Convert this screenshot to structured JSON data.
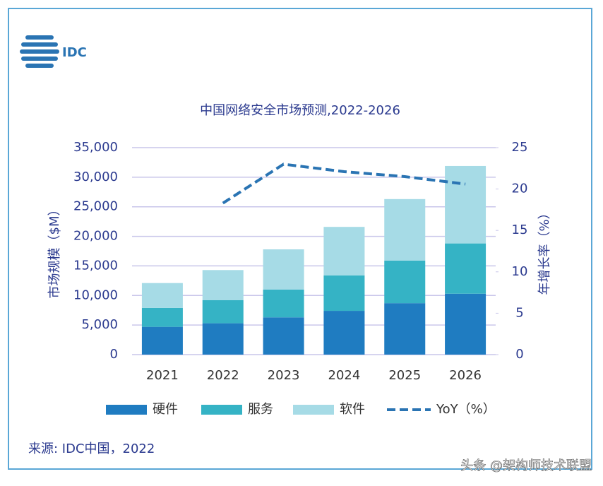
{
  "logo": "IDC",
  "chart_data": {
    "type": "bar",
    "stacked": true,
    "title": "中国网络安全市场预测,2022-2026",
    "y_label": "市场规模（$M）",
    "y2_label": "年增长率（%）",
    "categories": [
      "2021",
      "2022",
      "2023",
      "2024",
      "2025",
      "2026"
    ],
    "series": [
      {
        "name": "硬件",
        "color": "#1f7cc1",
        "values": [
          4700,
          5300,
          6300,
          7400,
          8700,
          10300
        ]
      },
      {
        "name": "服务",
        "color": "#35b3c5",
        "values": [
          3200,
          3900,
          4700,
          6000,
          7200,
          8500
        ]
      },
      {
        "name": "软件",
        "color": "#a6dbe6",
        "values": [
          4200,
          5100,
          6800,
          8200,
          10400,
          13100
        ]
      },
      {
        "name": "YoY（%）",
        "color": "#2a74b3",
        "type": "line",
        "dashed": true,
        "axis": "y2",
        "values": [
          null,
          18.3,
          23.0,
          22.1,
          21.5,
          20.6
        ]
      }
    ],
    "ylim": [
      0,
      35000
    ],
    "yticks": [
      0,
      {
        "value": 5000,
        "label": "5,000"
      },
      {
        "value": 10000,
        "label": "10,000"
      },
      {
        "value": 15000,
        "label": "15,000"
      },
      {
        "value": 20000,
        "label": "20,000"
      },
      {
        "value": 25000,
        "label": "25,000"
      },
      {
        "value": 30000,
        "label": "30,000"
      },
      {
        "value": 35000,
        "label": "35,000"
      }
    ],
    "y2lim": [
      0,
      25
    ],
    "y2ticks": [
      0,
      5,
      10,
      15,
      20,
      25
    ],
    "grid": true,
    "source": "来源: IDC中国，2022"
  },
  "watermark": "头条 @架构师技术联盟"
}
